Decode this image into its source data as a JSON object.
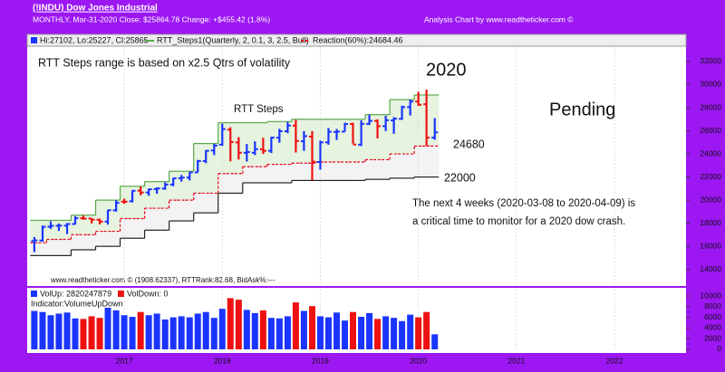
{
  "header": {
    "title": "(!INDU) Dow Jones Industrial",
    "info": "MONTHLY, Mar-31-2020  Close: $25864.78  Change: +$455.42  (1.8%)",
    "credit": "Analysis Chart by www.readtheticker.com ©"
  },
  "chart_data": [
    {
      "type": "ohlc",
      "x": [
        2016.083,
        2016.167,
        2016.25,
        2016.333,
        2016.417,
        2016.5,
        2016.583,
        2016.667,
        2016.75,
        2016.833,
        2016.917,
        2017,
        2017.083,
        2017.167,
        2017.25,
        2017.333,
        2017.417,
        2017.5,
        2017.583,
        2017.667,
        2017.75,
        2017.833,
        2017.917,
        2018,
        2018.083,
        2018.167,
        2018.25,
        2018.333,
        2018.417,
        2018.5,
        2018.583,
        2018.667,
        2018.75,
        2018.833,
        2018.917,
        2019,
        2019.083,
        2019.167,
        2019.25,
        2019.333,
        2019.417,
        2019.5,
        2019.583,
        2019.667,
        2019.75,
        2019.833,
        2019.917,
        2020,
        2020.083,
        2020.167
      ],
      "open": [
        16450,
        16500,
        17700,
        17780,
        17790,
        17930,
        18430,
        18400,
        18300,
        18140,
        19120,
        19870,
        19900,
        20820,
        20660,
        20950,
        21000,
        21350,
        21900,
        21950,
        22400,
        23380,
        24300,
        24800,
        26100,
        25000,
        24100,
        24100,
        24400,
        24270,
        25400,
        25960,
        26450,
        25100,
        25500,
        23300,
        25000,
        25900,
        25930,
        26590,
        24800,
        26600,
        26860,
        26400,
        26900,
        27040,
        28050,
        28540,
        28300,
        25409
      ],
      "high": [
        16800,
        17800,
        18167,
        17980,
        18016,
        18622,
        18668,
        18450,
        18400,
        19152,
        19987,
        20125,
        20851,
        21169,
        21000,
        21112,
        21535,
        21929,
        22179,
        22420,
        23485,
        24327,
        24876,
        26617,
        26307,
        25450,
        24858,
        25087,
        25403,
        25475,
        26167,
        26770,
        26951,
        25980,
        25980,
        25150,
        26240,
        26155,
        26696,
        26700,
        26907,
        27398,
        27000,
        27306,
        27182,
        28175,
        28701,
        29374,
        29568,
        27102
      ],
      "low": [
        15500,
        16400,
        17500,
        17330,
        17063,
        17900,
        18300,
        17990,
        17900,
        17883,
        19000,
        19677,
        19800,
        20412,
        20379,
        20553,
        20900,
        21200,
        21600,
        21709,
        22400,
        23200,
        23900,
        24700,
        23360,
        23510,
        23344,
        23900,
        24000,
        24077,
        24966,
        25800,
        24122,
        24268,
        21713,
        22638,
        24800,
        25208,
        25920,
        24900,
        24680,
        26500,
        25339,
        25978,
        25743,
        26950,
        27325,
        28170,
        24681,
        25227
      ],
      "close": [
        16516,
        17685,
        17773,
        17787,
        17930,
        18432,
        18400,
        18308,
        18142,
        19124,
        19763,
        19864,
        20812,
        20663,
        20940,
        21009,
        21350,
        21891,
        21948,
        22405,
        23377,
        24272,
        24719,
        26149,
        25029,
        24103,
        24163,
        24416,
        24271,
        25415,
        25965,
        26458,
        25116,
        25538,
        23327,
        24999,
        25916,
        25929,
        26593,
        24815,
        26600,
        26864,
        26403,
        26917,
        27046,
        28051,
        28538,
        28256,
        25409,
        25865
      ],
      "bars_name": "Hi:27102, Lo:25227, Cl:25865",
      "up_color": "#1a35ff",
      "down_color": "#ee1111",
      "steps": {
        "name": "RTT_Steps1(Quarterly, 2, 0.1, 3, 2.5, Bull)",
        "color": "#5aa84a",
        "lower_color": "#222222",
        "upper": [
          18250,
          18250,
          18250,
          18250,
          18250,
          18700,
          18700,
          18700,
          20000,
          20000,
          20000,
          21200,
          21200,
          21200,
          21600,
          21600,
          21600,
          22500,
          22500,
          22500,
          24900,
          24900,
          24900,
          26700,
          26700,
          26700,
          26700,
          26700,
          26700,
          26800,
          26800,
          26800,
          27000,
          27000,
          27000,
          27000,
          27000,
          27000,
          27000,
          27000,
          27000,
          27400,
          27400,
          27400,
          28700,
          28700,
          28700,
          29100,
          29100,
          29100
        ],
        "lower": [
          15200,
          15200,
          15200,
          15200,
          15200,
          15700,
          15700,
          15700,
          16000,
          16000,
          16000,
          16700,
          16700,
          16700,
          17400,
          17400,
          17400,
          18200,
          18200,
          18200,
          18900,
          18900,
          18900,
          20600,
          20600,
          20600,
          21500,
          21500,
          21500,
          21500,
          21500,
          21500,
          21700,
          21700,
          21700,
          21700,
          21700,
          21700,
          21700,
          21700,
          21700,
          21800,
          21800,
          21800,
          21900,
          21900,
          21900,
          22000,
          22000,
          22000
        ]
      },
      "reaction": {
        "name": "Reaction(60%):24684.46",
        "color": "#e8001c",
        "values": [
          16300,
          16300,
          16600,
          16600,
          16600,
          17000,
          17000,
          17000,
          17300,
          17300,
          17300,
          18400,
          18400,
          18400,
          19300,
          19300,
          19300,
          20000,
          20000,
          20000,
          20600,
          20600,
          20600,
          22300,
          22300,
          22300,
          22900,
          22900,
          22900,
          23100,
          23100,
          23100,
          23200,
          23200,
          23200,
          23300,
          23300,
          23300,
          23300,
          23300,
          23300,
          23500,
          23500,
          23500,
          24000,
          24000,
          24000,
          24680,
          24680,
          24680
        ]
      },
      "annotations": [
        "RTT Steps range is based on x2.5 Qtrs of volatility",
        "2020",
        "RTT Steps",
        "Pending",
        "24680",
        "22000",
        "The next 4 weeks (2020-03-08 to 2020-04-09) is",
        "a critical time to monitor for a 2020 dow crash."
      ],
      "footer": "www.readtheticker.com © (1908.62337), RTTRank:82.68, BidAsk%:---",
      "xlim": [
        2016.01,
        2022.73
      ],
      "xticks": [
        2017,
        2018,
        2019,
        2020,
        2021,
        2022
      ],
      "ylim": [
        12800,
        33250
      ],
      "yticks": [
        14000,
        16000,
        18000,
        20000,
        22000,
        24000,
        26000,
        28000,
        30000,
        32000
      ],
      "grid": true
    },
    {
      "type": "bar",
      "indicator": "Indicator:VolumeUpDown",
      "x": [
        2016.083,
        2016.167,
        2016.25,
        2016.333,
        2016.417,
        2016.5,
        2016.583,
        2016.667,
        2016.75,
        2016.833,
        2016.917,
        2017,
        2017.083,
        2017.167,
        2017.25,
        2017.333,
        2017.417,
        2017.5,
        2017.583,
        2017.667,
        2017.75,
        2017.833,
        2017.917,
        2018,
        2018.083,
        2018.167,
        2018.25,
        2018.333,
        2018.417,
        2018.5,
        2018.583,
        2018.667,
        2018.75,
        2018.833,
        2018.917,
        2019,
        2019.083,
        2019.167,
        2019.25,
        2019.333,
        2019.417,
        2019.5,
        2019.583,
        2019.667,
        2019.75,
        2019.833,
        2019.917,
        2020,
        2020.083,
        2020.167
      ],
      "series": [
        {
          "name": "VolUp: 2820247879",
          "color": "#1a35ff",
          "values": [
            7200,
            7000,
            6400,
            6700,
            6900,
            5800,
            null,
            null,
            null,
            7800,
            7300,
            6400,
            6100,
            null,
            6400,
            6700,
            5600,
            6000,
            6200,
            6000,
            6700,
            7000,
            5900,
            7600,
            null,
            null,
            7400,
            6800,
            null,
            5900,
            5800,
            6200,
            null,
            7200,
            null,
            6200,
            6000,
            6900,
            5400,
            null,
            6100,
            6800,
            null,
            6200,
            5900,
            5300,
            6500,
            null,
            null,
            2820
          ]
        },
        {
          "name": "VolDown: 0",
          "color": "#ee1111",
          "values": [
            null,
            null,
            null,
            null,
            null,
            null,
            5700,
            6200,
            5900,
            null,
            null,
            null,
            null,
            7000,
            null,
            null,
            null,
            null,
            null,
            null,
            null,
            null,
            null,
            null,
            9600,
            9300,
            null,
            null,
            7300,
            null,
            null,
            null,
            8800,
            null,
            8100,
            null,
            null,
            null,
            null,
            7000,
            null,
            null,
            5700,
            null,
            null,
            null,
            null,
            6000,
            7000,
            null
          ]
        }
      ],
      "xlim": [
        2016.01,
        2022.73
      ],
      "xticks": [
        2017,
        2018,
        2019,
        2020,
        2021,
        2022
      ],
      "ylim": [
        -340,
        11190
      ],
      "yticks": [
        0,
        2000,
        4000,
        6000,
        8000,
        10000
      ],
      "grid": true
    }
  ]
}
